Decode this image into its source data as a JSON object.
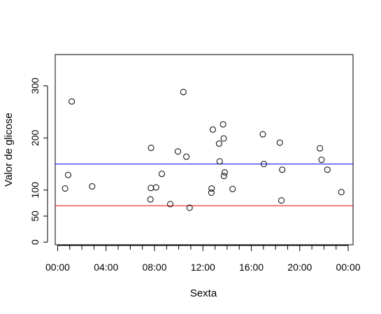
{
  "chart_data": {
    "type": "scatter",
    "title": "",
    "xlabel": "Sexta",
    "ylabel": "Valor de glicose",
    "xlim": [
      "23:48",
      "24:24"
    ],
    "ylim": [
      -5,
      360
    ],
    "x_ticks": [
      "00:00",
      "04:00",
      "08:00",
      "12:00",
      "16:00",
      "20:00",
      "00:00"
    ],
    "y_ticks": [
      0,
      50,
      100,
      200,
      300
    ],
    "grid": false,
    "reference_lines": [
      {
        "y": 150,
        "color": "#0000ff"
      },
      {
        "y": 70,
        "color": "#ff0000"
      }
    ],
    "series": [
      {
        "marker": "open-circle",
        "points": [
          {
            "x": "00:37",
            "y": 103
          },
          {
            "x": "00:52",
            "y": 129
          },
          {
            "x": "01:10",
            "y": 270
          },
          {
            "x": "02:51",
            "y": 107
          },
          {
            "x": "07:40",
            "y": 82
          },
          {
            "x": "07:42",
            "y": 104
          },
          {
            "x": "07:43",
            "y": 181
          },
          {
            "x": "08:08",
            "y": 105
          },
          {
            "x": "08:36",
            "y": 131
          },
          {
            "x": "09:18",
            "y": 73
          },
          {
            "x": "09:56",
            "y": 174
          },
          {
            "x": "10:23",
            "y": 288
          },
          {
            "x": "10:38",
            "y": 164
          },
          {
            "x": "10:54",
            "y": 66
          },
          {
            "x": "12:42",
            "y": 95
          },
          {
            "x": "12:43",
            "y": 103
          },
          {
            "x": "12:49",
            "y": 216
          },
          {
            "x": "13:20",
            "y": 189
          },
          {
            "x": "13:23",
            "y": 155
          },
          {
            "x": "13:40",
            "y": 226
          },
          {
            "x": "13:43",
            "y": 199
          },
          {
            "x": "13:44",
            "y": 127
          },
          {
            "x": "13:48",
            "y": 134
          },
          {
            "x": "14:27",
            "y": 102
          },
          {
            "x": "16:57",
            "y": 207
          },
          {
            "x": "17:02",
            "y": 150
          },
          {
            "x": "18:21",
            "y": 191
          },
          {
            "x": "18:29",
            "y": 80
          },
          {
            "x": "18:33",
            "y": 139
          },
          {
            "x": "21:40",
            "y": 180
          },
          {
            "x": "21:48",
            "y": 158
          },
          {
            "x": "22:17",
            "y": 139
          },
          {
            "x": "23:26",
            "y": 96
          }
        ]
      }
    ]
  }
}
